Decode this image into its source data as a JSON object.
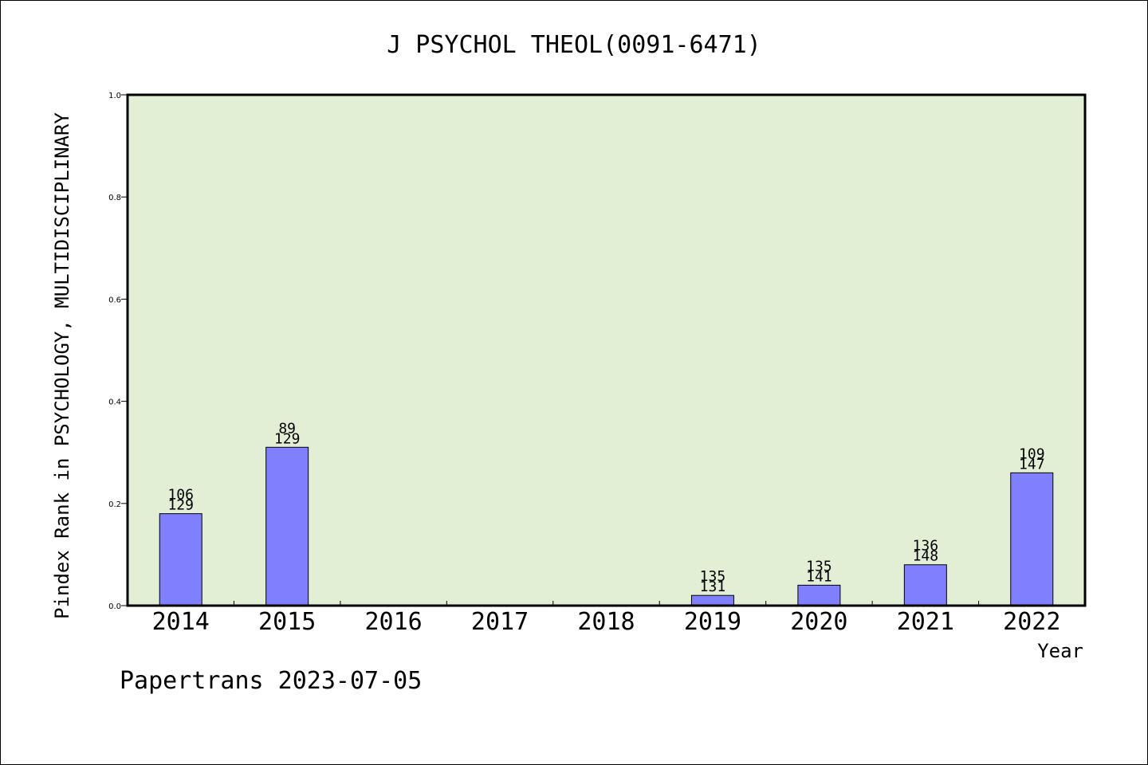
{
  "chart_data": {
    "type": "bar",
    "title": "J PSYCHOL THEOL(0091-6471)",
    "xlabel": "Year",
    "ylabel": "Pindex Rank in PSYCHOLOGY, MULTIDISCIPLINARY",
    "ylim": [
      0,
      1.0
    ],
    "yticks": [
      "0.0",
      "0.2",
      "0.4",
      "0.6",
      "0.8",
      "1.0"
    ],
    "categories": [
      "2014",
      "2015",
      "2016",
      "2017",
      "2018",
      "2019",
      "2020",
      "2021",
      "2022"
    ],
    "values": [
      0.18,
      0.31,
      null,
      null,
      null,
      0.02,
      0.04,
      0.08,
      0.26
    ],
    "labels_top": [
      "106",
      "89",
      "",
      "",
      "",
      "135",
      "135",
      "136",
      "109"
    ],
    "labels_bottom": [
      "129",
      "129",
      "",
      "",
      "",
      "131",
      "141",
      "148",
      "147"
    ],
    "plot_background": "#e2efd5",
    "bar_color": "#8080ff",
    "footer": "Papertrans 2023-07-05"
  }
}
